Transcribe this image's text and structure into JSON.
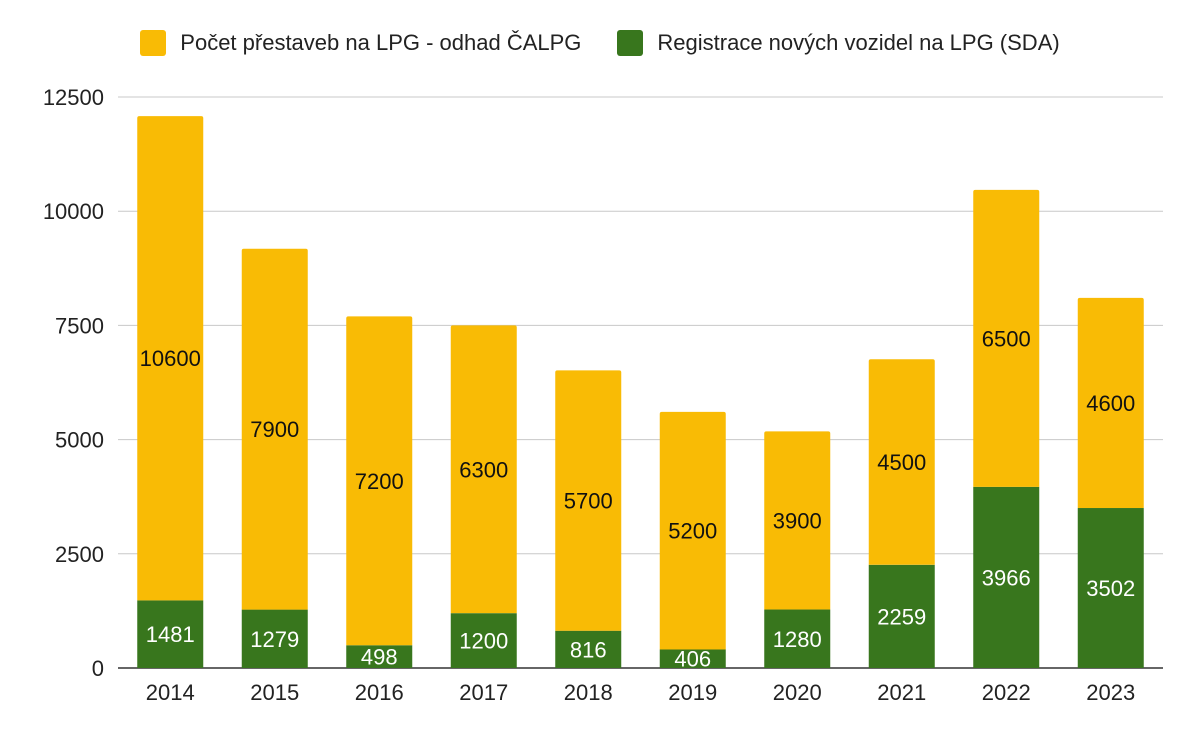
{
  "chart_data": {
    "type": "bar",
    "stacked": true,
    "categories": [
      "2014",
      "2015",
      "2016",
      "2017",
      "2018",
      "2019",
      "2020",
      "2021",
      "2022",
      "2023"
    ],
    "series": [
      {
        "name": "Registrace nových vozidel na LPG (SDA)",
        "color": "#38761d",
        "values": [
          1481,
          1279,
          498,
          1200,
          816,
          406,
          1280,
          2259,
          3966,
          3502
        ]
      },
      {
        "name": "Počet přestaveb na LPG - odhad ČALPG",
        "color": "#f9bb05",
        "values": [
          10600,
          7900,
          7200,
          6300,
          5700,
          5200,
          3900,
          4500,
          6500,
          4600
        ]
      }
    ],
    "ylim": [
      0,
      12500
    ],
    "yticks": [
      "0",
      "2500",
      "5000",
      "7500",
      "10000",
      "12500"
    ],
    "grid": true,
    "legend_position": "top"
  }
}
